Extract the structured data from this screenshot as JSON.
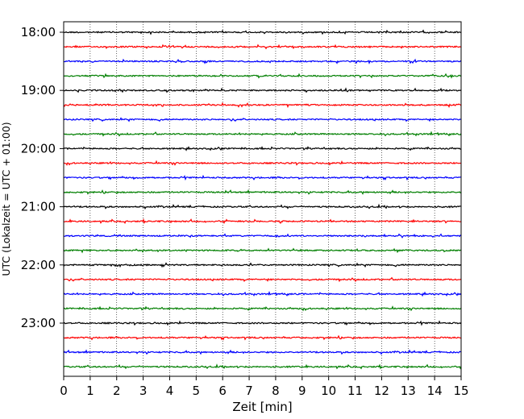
{
  "chart_data": {
    "type": "line",
    "title": "",
    "xlabel": "Zeit  [min]",
    "ylabel": "UTC (Lokalzeit = UTC + 01:00)",
    "xlim": [
      0,
      15
    ],
    "x_ticks": [
      0,
      1,
      2,
      3,
      4,
      5,
      6,
      7,
      8,
      9,
      10,
      11,
      12,
      13,
      14,
      15
    ],
    "x_tick_labels": [
      "0",
      "1",
      "2",
      "3",
      "4",
      "5",
      "6",
      "7",
      "8",
      "9",
      "10",
      "11",
      "12",
      "13",
      "14",
      "15"
    ],
    "y_tick_labels": [
      "18:00",
      "19:00",
      "20:00",
      "21:00",
      "22:00",
      "23:00"
    ],
    "grid": "vertical dotted lines at each minute",
    "trace_colors": [
      "#000000",
      "#ff0000",
      "#0000ff",
      "#007f00"
    ],
    "series": [
      {
        "start": "18:00",
        "color": "#000000"
      },
      {
        "start": "18:15",
        "color": "#ff0000"
      },
      {
        "start": "18:30",
        "color": "#0000ff"
      },
      {
        "start": "18:45",
        "color": "#007f00"
      },
      {
        "start": "19:00",
        "color": "#000000"
      },
      {
        "start": "19:15",
        "color": "#ff0000"
      },
      {
        "start": "19:30",
        "color": "#0000ff"
      },
      {
        "start": "19:45",
        "color": "#007f00"
      },
      {
        "start": "20:00",
        "color": "#000000"
      },
      {
        "start": "20:15",
        "color": "#ff0000"
      },
      {
        "start": "20:30",
        "color": "#0000ff"
      },
      {
        "start": "20:45",
        "color": "#007f00"
      },
      {
        "start": "21:00",
        "color": "#000000"
      },
      {
        "start": "21:15",
        "color": "#ff0000"
      },
      {
        "start": "21:30",
        "color": "#0000ff"
      },
      {
        "start": "21:45",
        "color": "#007f00"
      },
      {
        "start": "22:00",
        "color": "#000000"
      },
      {
        "start": "22:15",
        "color": "#ff0000"
      },
      {
        "start": "22:30",
        "color": "#0000ff"
      },
      {
        "start": "22:45",
        "color": "#007f00"
      },
      {
        "start": "23:00",
        "color": "#000000"
      },
      {
        "start": "23:15",
        "color": "#ff0000"
      },
      {
        "start": "23:30",
        "color": "#0000ff"
      },
      {
        "start": "23:45",
        "color": "#007f00"
      }
    ]
  }
}
